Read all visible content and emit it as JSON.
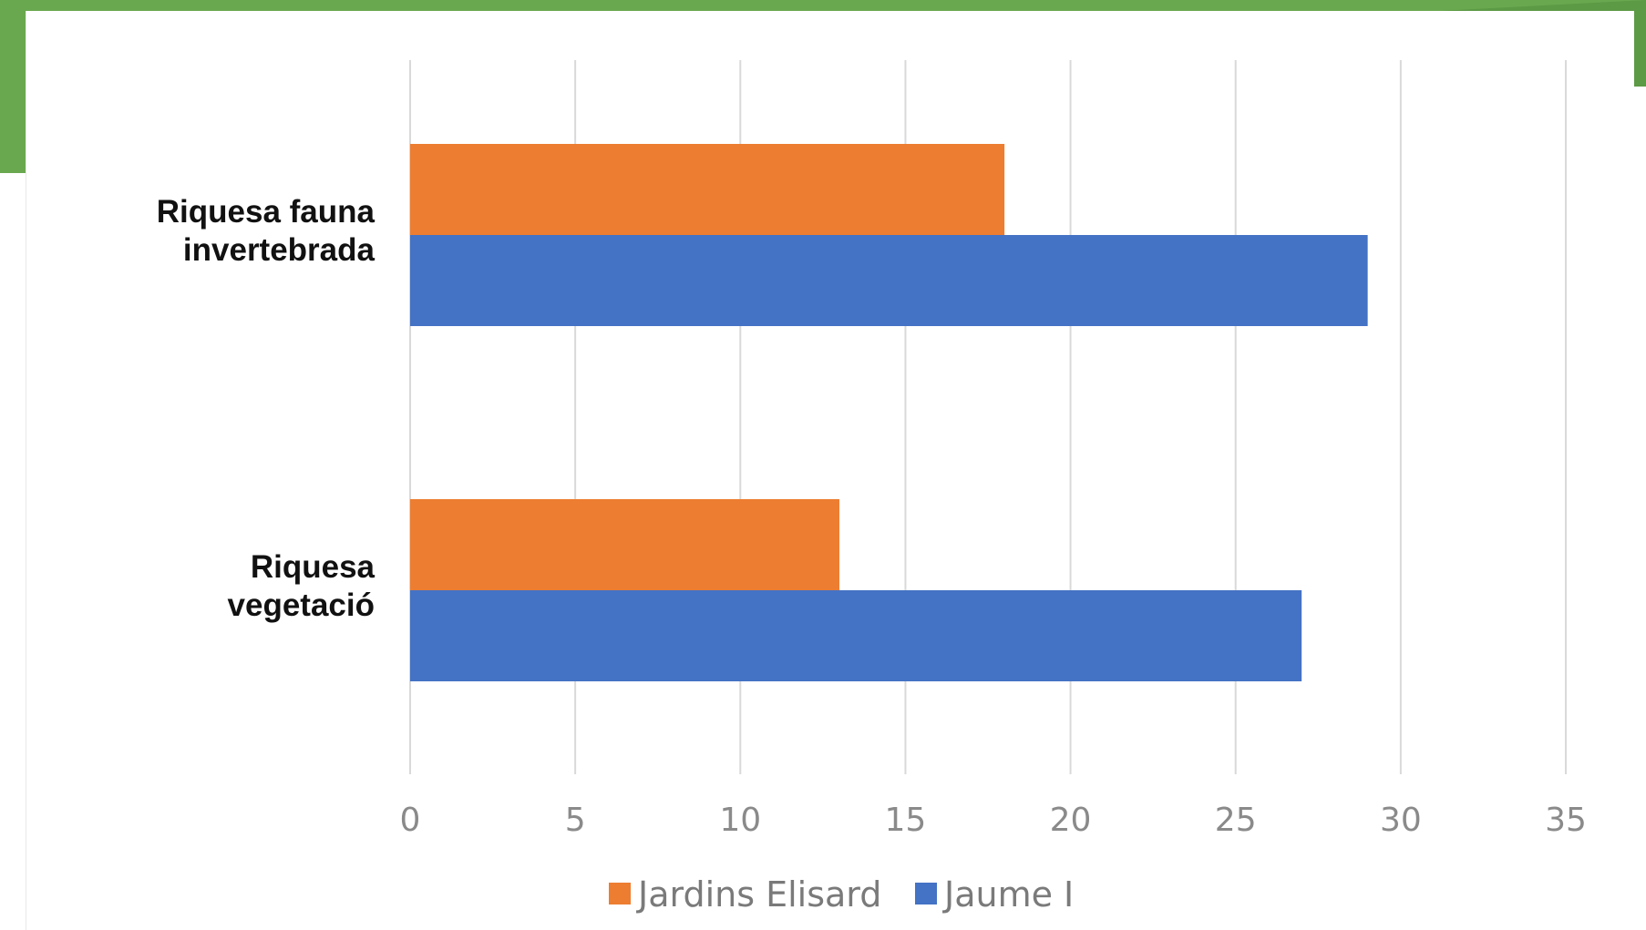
{
  "colors": {
    "frame_green": "#6aa84f",
    "frame_green_dark": "#4f8a3c",
    "gridline": "#d9d9d9",
    "tick_text": "#8a8a8a",
    "category_text": "#111111"
  },
  "chart_data": {
    "type": "bar",
    "orientation": "horizontal",
    "categories": [
      [
        "Riquesa fauna",
        "invertebrada"
      ],
      [
        "Riquesa",
        "vegetació"
      ]
    ],
    "series": [
      {
        "name": "Jardins Elisard",
        "color": "#ed7d31",
        "values": [
          18,
          13
        ]
      },
      {
        "name": "Jaume I",
        "color": "#4472c4",
        "values": [
          29,
          27
        ]
      }
    ],
    "xlim": [
      0,
      35
    ],
    "xticks": [
      0,
      5,
      10,
      15,
      20,
      25,
      30,
      35
    ],
    "grid": "vertical",
    "legend": "bottom-center"
  }
}
